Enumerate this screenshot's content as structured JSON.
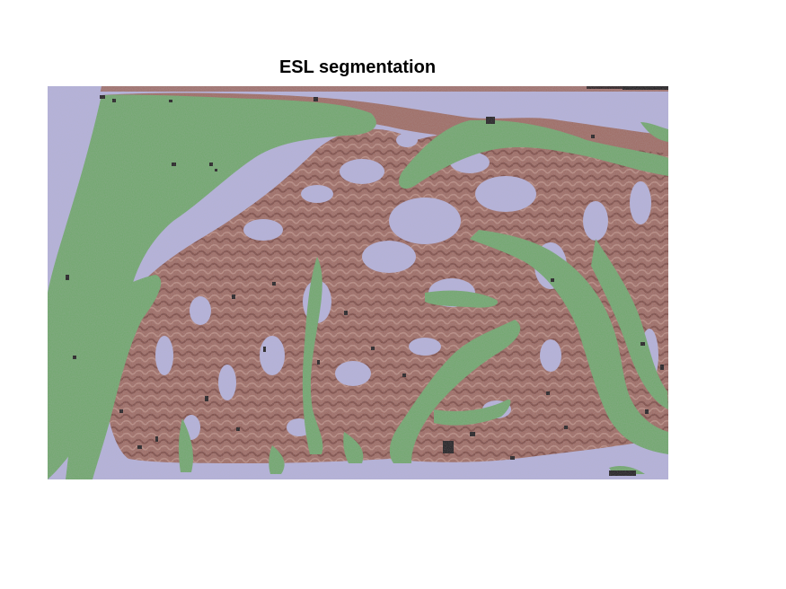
{
  "figure": {
    "title": "ESL segmentation"
  },
  "colors": {
    "background_class": "#b5b3dc",
    "tissue_class": "#9e6a60",
    "esl_class": "#6ea86a",
    "dark_speckle": "#1c1a1a"
  }
}
